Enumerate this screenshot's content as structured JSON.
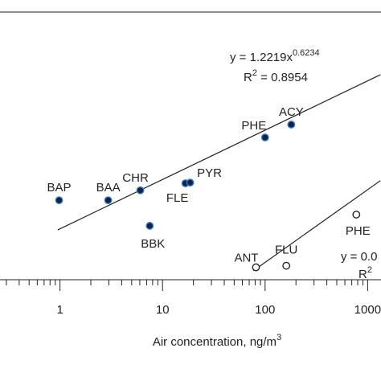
{
  "chart_data": {
    "type": "scatter",
    "xlabel": {
      "text": "Air concentration, ng/m",
      "sup": "3"
    },
    "xlog": true,
    "ylog": true,
    "xlim": [
      0.26,
      1350
    ],
    "ylim": [
      0.3,
      700
    ],
    "xticks": [
      1,
      10,
      100,
      1000
    ],
    "xticks_minor": [
      0.3,
      0.4,
      0.5,
      0.6,
      0.7,
      0.8,
      0.9,
      2,
      3,
      4,
      5,
      6,
      7,
      8,
      9,
      20,
      30,
      40,
      50,
      60,
      70,
      80,
      90,
      200,
      300,
      400,
      500,
      600,
      700,
      800,
      900
    ],
    "series": [
      {
        "marker": "filled",
        "color": "#16213f",
        "edge": "#2f7fd0",
        "labels": [
          "BAP",
          "BAA",
          "CHR",
          "BBK",
          "FLE",
          "PYR",
          "PHE",
          "ACY"
        ],
        "x": [
          0.98,
          2.95,
          6.07,
          7.5,
          16.7,
          18.6,
          100,
          180
        ],
        "values": [
          3.0,
          3.0,
          4.0,
          1.43,
          4.9,
          5.0,
          18.5,
          26.9
        ]
      },
      {
        "marker": "open",
        "color": "#ffffff",
        "edge": "#222222",
        "labels": [
          "ANT",
          "FLU",
          "PHE"
        ],
        "x": [
          81.5,
          161,
          776
        ],
        "values": [
          0.43,
          0.45,
          1.98
        ]
      }
    ],
    "fit_lines": [
      {
        "x": [
          0.95,
          1333
        ],
        "values": [
          1.27,
          114
        ]
      },
      {
        "x": [
          77,
          1333
        ],
        "values": [
          0.39,
          5.3
        ]
      }
    ],
    "annotations": [
      {
        "text": "y = 1.2219x",
        "sup": "0.6234"
      },
      {
        "text": "R",
        "sup": "2",
        "rest": " = 0.8954"
      },
      {
        "text": "y = 0.0"
      },
      {
        "text": "R",
        "sup": "2"
      }
    ]
  }
}
